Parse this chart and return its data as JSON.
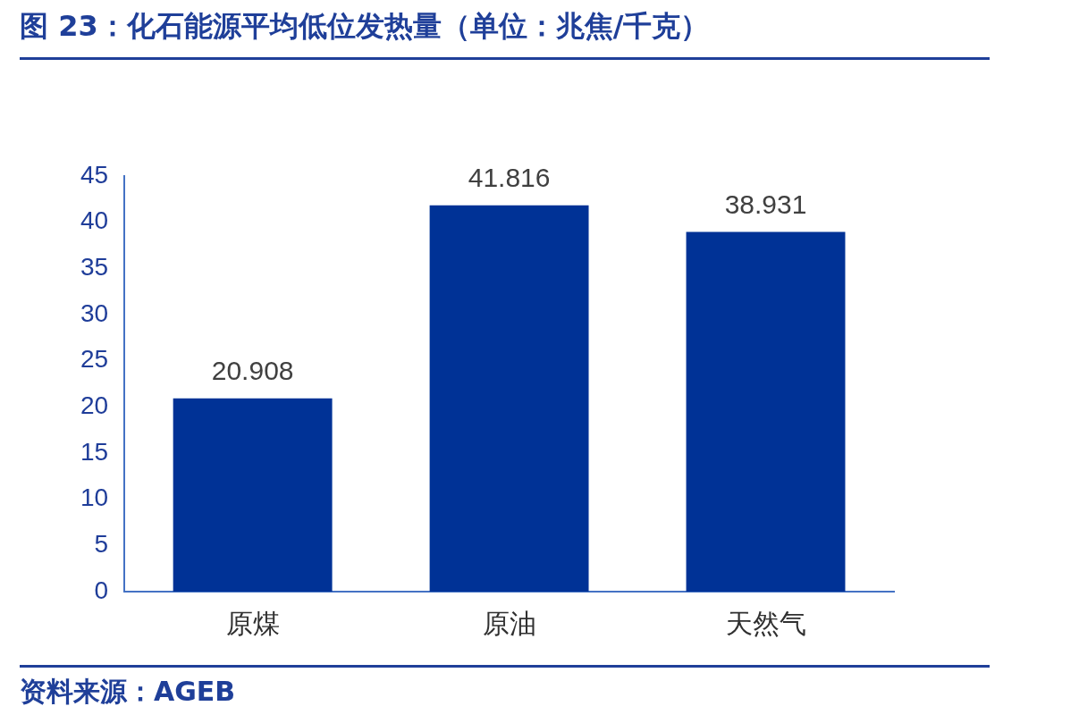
{
  "chart_data": {
    "type": "bar",
    "title": "图 23：化石能源平均低位发热量（单位：兆焦/千克）",
    "categories": [
      "原煤",
      "原油",
      "天然气"
    ],
    "values": [
      20.908,
      41.816,
      38.931
    ],
    "color": "#003296",
    "ylim": [
      0,
      45
    ],
    "yticks": [
      0,
      5,
      10,
      15,
      20,
      25,
      30,
      35,
      40,
      45
    ],
    "grid": false,
    "legend": false,
    "data_labels": true,
    "annotations": [
      "资料来源：AGEB"
    ]
  }
}
